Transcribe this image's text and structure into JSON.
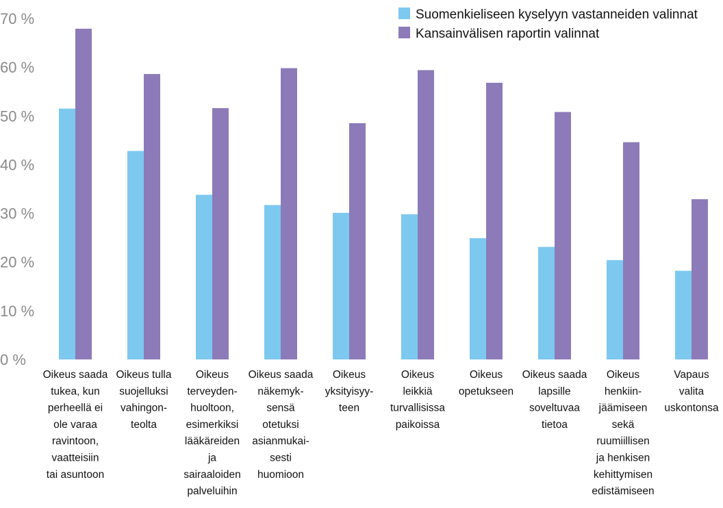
{
  "chart_data": {
    "type": "bar",
    "ylim": [
      0,
      70
    ],
    "ytick_labels": [
      "0 %",
      "10 %",
      "20 %",
      "30 %",
      "40 %",
      "50 %",
      "60 %",
      "70 %"
    ],
    "ytick_values": [
      0,
      10,
      20,
      30,
      40,
      50,
      60,
      70
    ],
    "legend_position": "top-right",
    "grid": false,
    "categories": [
      "Oikeus saada tukea, kun perheellä ei ole varaa ravintoon, vaatteisiin tai asuntoon",
      "Oikeus tulla suojelluksi vahingonteolta",
      "Oikeus terveydenhuoltoon, esimerkiksi lääkäreiden ja sairaaloiden palveluihin",
      "Oikeus saada näkemyksensä otetuksi asianmukaisesti huomioon",
      "Oikeus yksityisyyteen",
      "Oikeus leikkiä turvallisissa paikoissa",
      "Oikeus opetukseen",
      "Oikeus saada lapsille soveltuvaa tietoa",
      "Oikeus henkiinjäämiseen sekä ruumiillisen ja henkisen kehittymisen edistämiseen",
      "Vapaus valita uskontonsa"
    ],
    "category_label_lines": [
      [
        "Oikeus saada",
        "tukea, kun",
        "perheellä ei",
        "ole varaa",
        "ravintoon,",
        "vaatteisiin",
        "tai asuntoon"
      ],
      [
        "Oikeus tulla",
        "suojelluksi",
        "vahingon-",
        "teolta"
      ],
      [
        "Oikeus",
        "terveyden-",
        "huoltoon,",
        "esimerkiksi",
        "lääkäreiden",
        "ja",
        "sairaaloiden",
        "palveluihin"
      ],
      [
        "Oikeus saada",
        "näkemyk-",
        "sensä",
        "otetuksi",
        "asianmukai-",
        "sesti",
        "huomioon"
      ],
      [
        "Oikeus",
        "yksityisyy-",
        "teen"
      ],
      [
        "Oikeus",
        "leikkiä",
        "turvallisissa",
        "paikoissa"
      ],
      [
        "Oikeus",
        "opetukseen"
      ],
      [
        "Oikeus saada",
        "lapsille",
        "soveltuvaa",
        "tietoa"
      ],
      [
        "Oikeus",
        "henkiin-",
        "jäämiseen",
        "sekä",
        "ruumiillisen",
        "ja henkisen",
        "kehittymisen",
        "edistämiseen"
      ],
      [
        "Vapaus",
        "valita",
        "uskontonsa"
      ]
    ],
    "series": [
      {
        "name": "Suomenkieliseen kyselyyn vastanneiden valinnat",
        "color": "#7dc8ef",
        "values": [
          51.5,
          42.8,
          33.8,
          31.7,
          30.1,
          29.8,
          24.9,
          23.1,
          20.4,
          18.2
        ]
      },
      {
        "name": "Kansainvälisen raportin valinnat",
        "color": "#8c7bb8",
        "values": [
          67.9,
          58.6,
          51.6,
          59.8,
          48.5,
          59.4,
          56.8,
          50.8,
          44.6,
          32.9
        ]
      }
    ]
  }
}
